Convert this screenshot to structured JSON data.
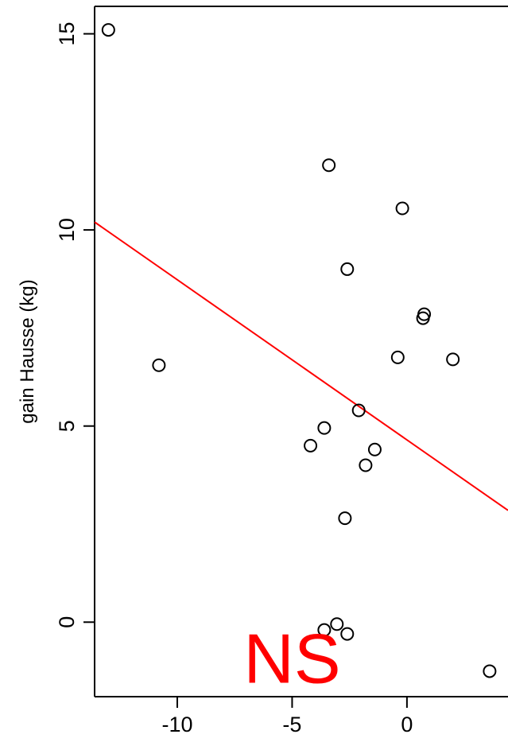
{
  "chart_data": {
    "type": "scatter",
    "title": "",
    "xlabel": "",
    "ylabel": "gain Hausse (kg)",
    "xlim": [
      -13.6,
      4.4
    ],
    "ylim": [
      -1.9,
      15.7
    ],
    "xticks": [
      -10,
      -5,
      0
    ],
    "yticks": [
      0,
      5,
      10,
      15
    ],
    "grid": false,
    "colors": {
      "points": "#000000",
      "fit_line": "#ff0000",
      "annotation": "#ff0000"
    },
    "points": [
      {
        "x": -13.0,
        "y": 15.1
      },
      {
        "x": -10.8,
        "y": 6.55
      },
      {
        "x": -3.4,
        "y": 11.65
      },
      {
        "x": -0.2,
        "y": 10.55
      },
      {
        "x": -2.6,
        "y": 9.0
      },
      {
        "x": 0.75,
        "y": 7.85
      },
      {
        "x": 0.7,
        "y": 7.75
      },
      {
        "x": -0.4,
        "y": 6.75
      },
      {
        "x": 2.0,
        "y": 6.7
      },
      {
        "x": -2.1,
        "y": 5.4
      },
      {
        "x": -3.6,
        "y": 4.95
      },
      {
        "x": -4.2,
        "y": 4.5
      },
      {
        "x": -1.4,
        "y": 4.4
      },
      {
        "x": -1.8,
        "y": 4.0
      },
      {
        "x": -2.7,
        "y": 2.65
      },
      {
        "x": -3.05,
        "y": -0.05
      },
      {
        "x": -3.6,
        "y": -0.2
      },
      {
        "x": -2.6,
        "y": -0.3
      },
      {
        "x": 3.6,
        "y": -1.25
      }
    ],
    "fit_line": {
      "x": [
        -13.6,
        4.4
      ],
      "y": [
        10.2,
        2.85
      ]
    },
    "annotations": [
      {
        "text": "NS",
        "x": -5.0,
        "y": -1.55,
        "color": "#ff0000"
      }
    ]
  }
}
